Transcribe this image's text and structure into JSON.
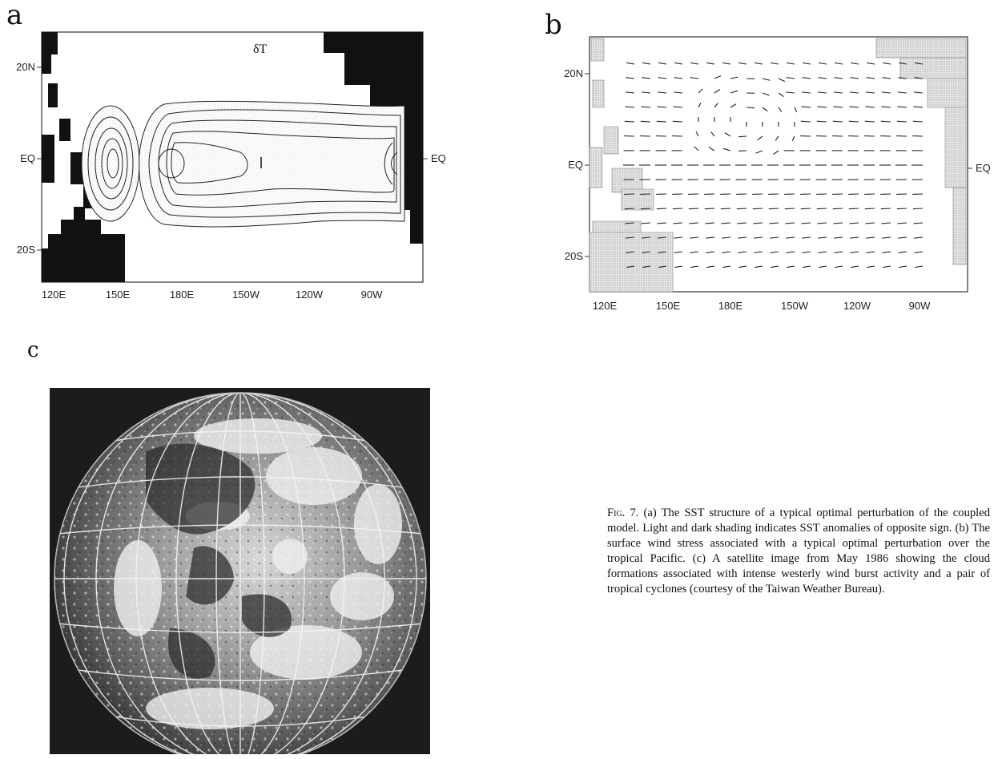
{
  "panels": {
    "a": {
      "letter": "a",
      "field_label": "δT",
      "x_ticks": [
        "120E",
        "150E",
        "180E",
        "150W",
        "120W",
        "90W"
      ],
      "y_ticks_left": [
        "20N",
        "EQ",
        "20S"
      ],
      "y_tick_right": "EQ"
    },
    "b": {
      "letter": "b",
      "x_ticks": [
        "120E",
        "150E",
        "180E",
        "150W",
        "120W",
        "90W"
      ],
      "y_ticks_left": [
        "20N",
        "EQ",
        "20S"
      ],
      "y_tick_right": "EQ"
    },
    "c": {
      "letter": "c"
    }
  },
  "caption": {
    "fig_label": "Fig.",
    "fig_number": " 7.",
    "text": " (a) The SST structure of a typical optimal perturbation of the coupled model. Light and dark shading indicates SST anomalies of opposite sign. (b) The surface wind stress associated with a typical optimal perturbation over the tropical Pacific. (c) A satellite image from May 1986 showing the cloud formations associated with intense westerly wind burst activity and a pair of tropical cyclones (courtesy of the Taiwan Weather Bureau)."
  }
}
